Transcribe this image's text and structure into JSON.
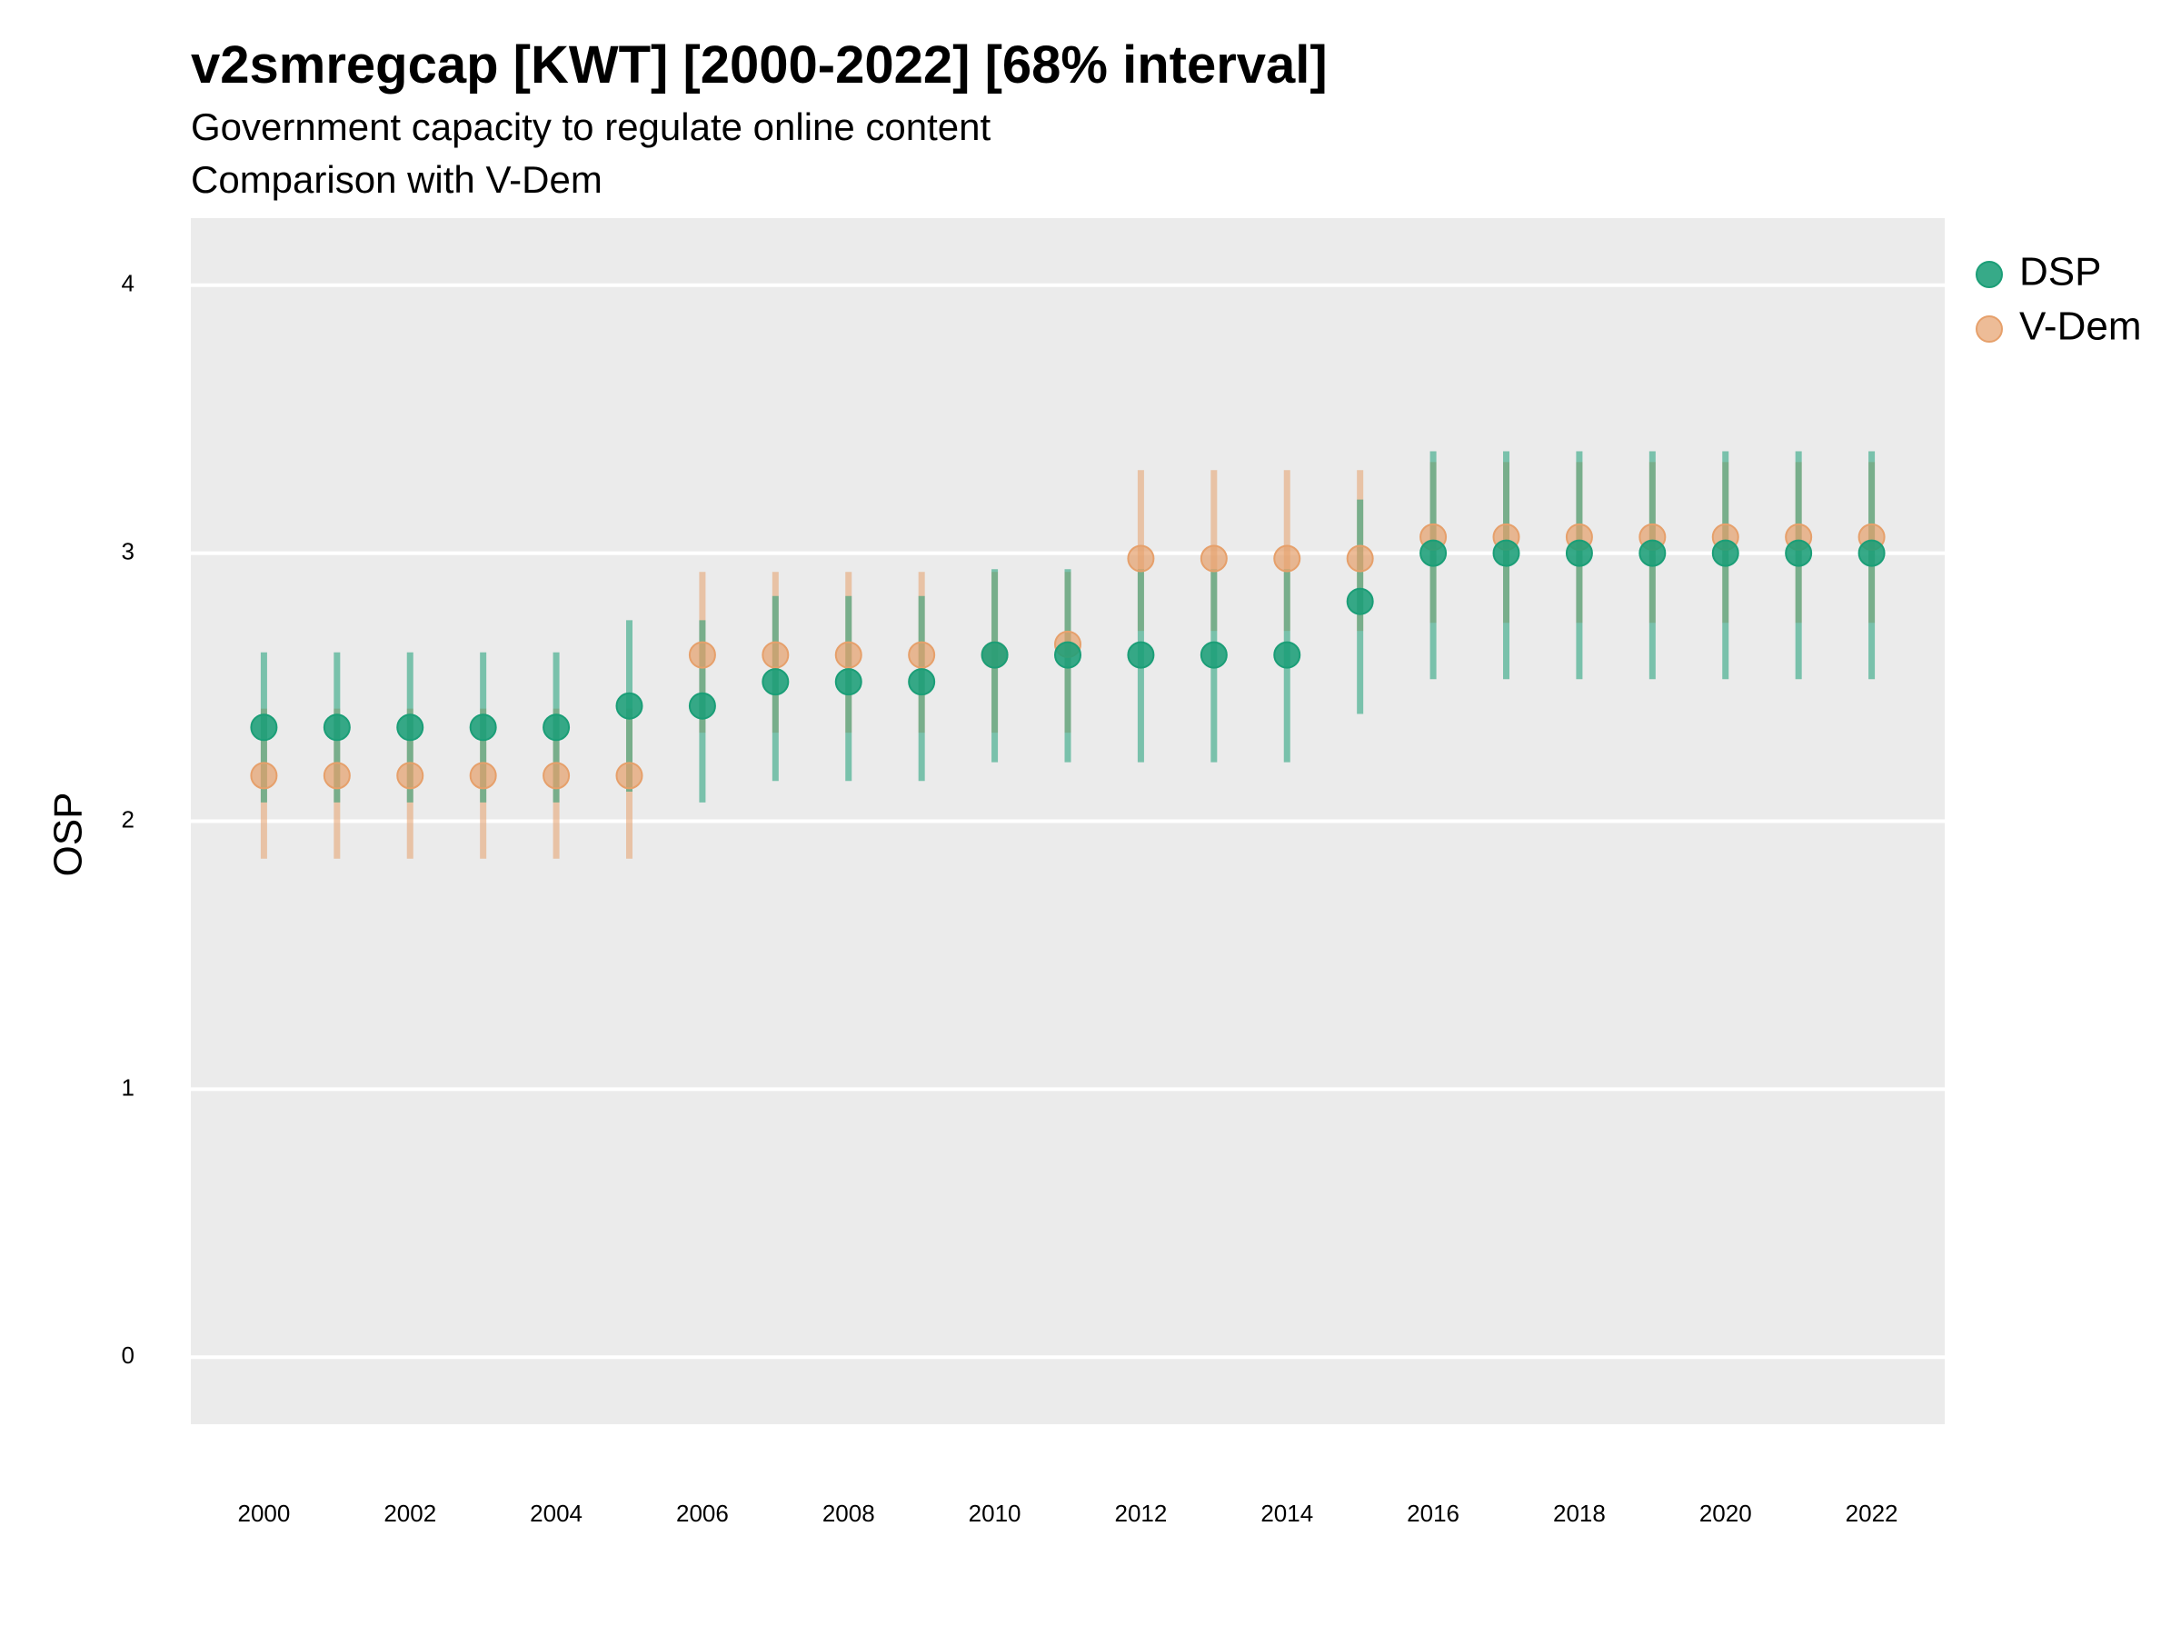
{
  "chart_data": {
    "type": "scatter",
    "title": "v2smregcap [KWT] [2000-2022] [68% interval]",
    "subtitle": "Government capacity to regulate online content",
    "subtitle2": "Comparison with V-Dem",
    "ylabel": "OSP",
    "ylim": [
      -0.25,
      4.25
    ],
    "yticks": [
      0,
      1,
      2,
      3,
      4
    ],
    "xticks": [
      2000,
      2002,
      2004,
      2006,
      2008,
      2010,
      2012,
      2014,
      2016,
      2018,
      2020,
      2022
    ],
    "grid": true,
    "legend_position": "right",
    "series": [
      {
        "name": "DSP",
        "color": "#1b9e77",
        "x": [
          2000,
          2001,
          2002,
          2003,
          2004,
          2005,
          2006,
          2007,
          2008,
          2009,
          2010,
          2011,
          2012,
          2013,
          2014,
          2015,
          2016,
          2017,
          2018,
          2019,
          2020,
          2021,
          2022
        ],
        "y": [
          2.35,
          2.35,
          2.35,
          2.35,
          2.35,
          2.43,
          2.43,
          2.52,
          2.52,
          2.52,
          2.62,
          2.62,
          2.62,
          2.62,
          2.62,
          2.82,
          3.0,
          3.0,
          3.0,
          3.0,
          3.0,
          3.0,
          3.0
        ],
        "lower": [
          2.07,
          2.07,
          2.07,
          2.07,
          2.07,
          2.11,
          2.07,
          2.15,
          2.15,
          2.15,
          2.22,
          2.22,
          2.22,
          2.22,
          2.22,
          2.4,
          2.53,
          2.53,
          2.53,
          2.53,
          2.53,
          2.53,
          2.53
        ],
        "upper": [
          2.63,
          2.63,
          2.63,
          2.63,
          2.63,
          2.75,
          2.75,
          2.84,
          2.84,
          2.84,
          2.94,
          2.94,
          2.94,
          2.94,
          2.94,
          3.2,
          3.38,
          3.38,
          3.38,
          3.38,
          3.38,
          3.38,
          3.38
        ]
      },
      {
        "name": "V-Dem",
        "color": "#e6a06b",
        "x": [
          2000,
          2001,
          2002,
          2003,
          2004,
          2005,
          2006,
          2007,
          2008,
          2009,
          2010,
          2011,
          2012,
          2013,
          2014,
          2015,
          2016,
          2017,
          2018,
          2019,
          2020,
          2021,
          2022
        ],
        "y": [
          2.17,
          2.17,
          2.17,
          2.17,
          2.17,
          2.17,
          2.62,
          2.62,
          2.62,
          2.62,
          2.62,
          2.66,
          2.98,
          2.98,
          2.98,
          2.98,
          3.06,
          3.06,
          3.06,
          3.06,
          3.06,
          3.06,
          3.06
        ],
        "lower": [
          1.86,
          1.86,
          1.86,
          1.86,
          1.86,
          1.86,
          2.33,
          2.33,
          2.33,
          2.33,
          2.33,
          2.33,
          2.71,
          2.71,
          2.71,
          2.71,
          2.74,
          2.74,
          2.74,
          2.74,
          2.74,
          2.74,
          2.74
        ],
        "upper": [
          2.42,
          2.42,
          2.42,
          2.42,
          2.42,
          2.42,
          2.93,
          2.93,
          2.93,
          2.93,
          2.93,
          2.93,
          3.31,
          3.31,
          3.31,
          3.31,
          3.34,
          3.34,
          3.34,
          3.34,
          3.34,
          3.34,
          3.34
        ]
      }
    ]
  }
}
